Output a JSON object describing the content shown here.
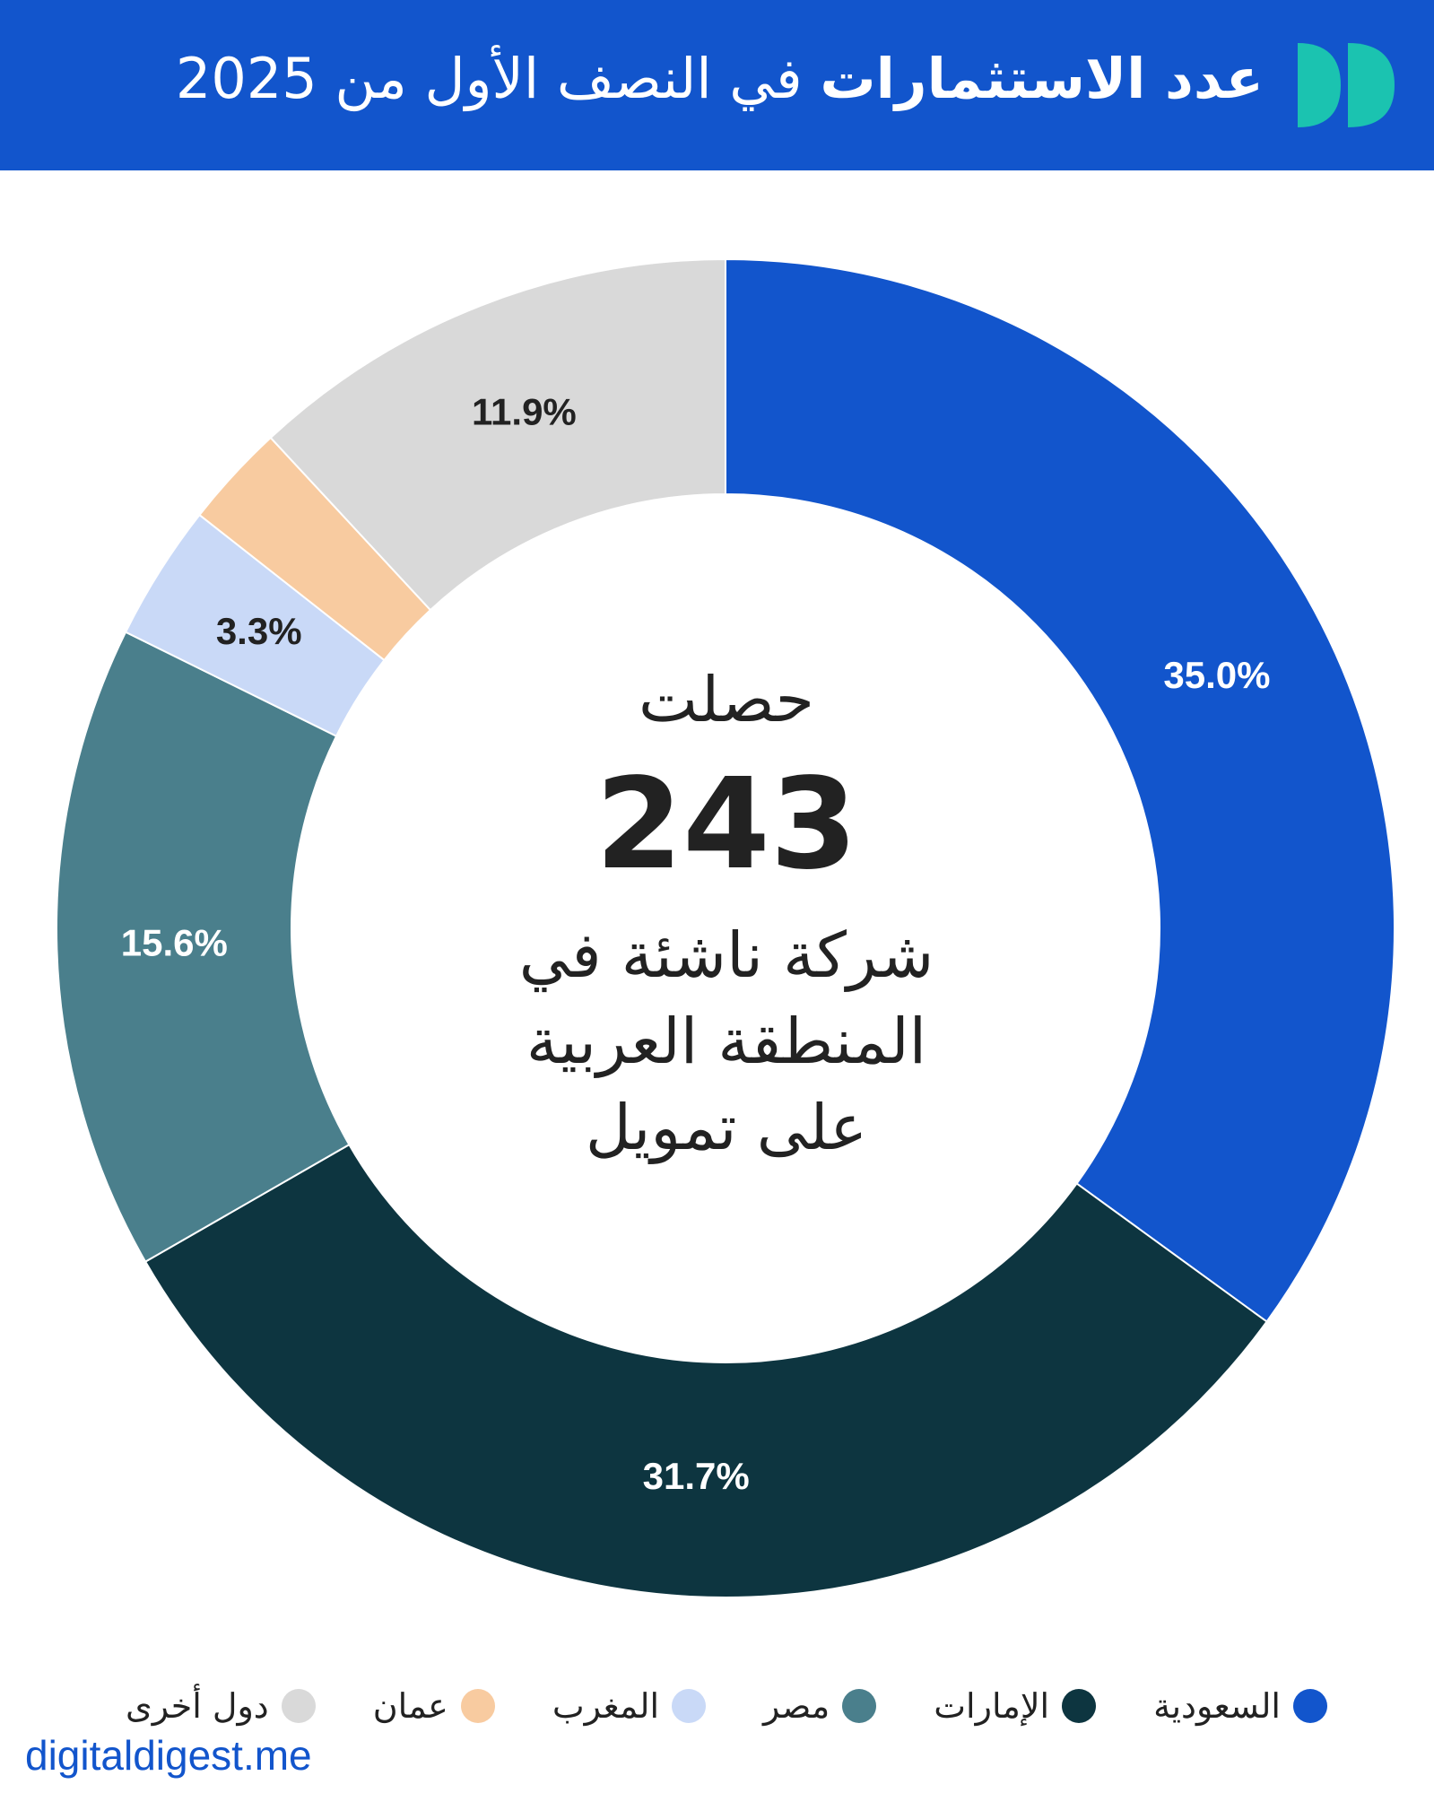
{
  "header": {
    "title_strong": "عدد الاستثمارات",
    "title_rest": " في النصف الأول من 2025",
    "background": "#1255CC",
    "logo_icon": "double-leaf-logo-icon"
  },
  "center": {
    "line1": "حصلت",
    "number": "243",
    "line2": "شركة ناشئة في",
    "line3": "المنطقة العربية",
    "line4": "على تمويل"
  },
  "footer": {
    "site": "digitaldigest.me"
  },
  "chart_data": {
    "type": "pie",
    "donut": true,
    "start_angle_deg": 0,
    "direction": "clockwise",
    "categories": [
      "السعودية",
      "الإمارات",
      "مصر",
      "المغرب",
      "عمان",
      "دول أخرى"
    ],
    "values": [
      35.0,
      31.7,
      15.6,
      3.3,
      2.5,
      11.9
    ],
    "labels": [
      "35.0%",
      "31.7%",
      "15.6%",
      "3.3%",
      "",
      "11.9%"
    ],
    "colors": [
      "#1255CC",
      "#0D3540",
      "#4A7F8C",
      "#C9D9F7",
      "#F8CBA0",
      "#D9D9D9"
    ],
    "label_colors": [
      "#ffffff",
      "#ffffff",
      "#ffffff",
      "#222222",
      "#222222",
      "#222222"
    ],
    "legend_position": "bottom"
  }
}
